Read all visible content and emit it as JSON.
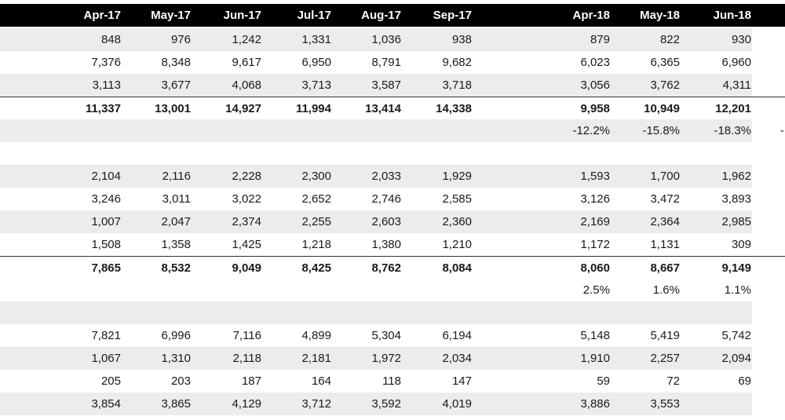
{
  "headers": [
    "Apr-17",
    "May-17",
    "Jun-17",
    "Jul-17",
    "Aug-17",
    "Sep-17",
    "Apr-18",
    "May-18",
    "Jun-18"
  ],
  "rows": [
    {
      "kind": "data",
      "shade": true,
      "cells": [
        "848",
        "976",
        "1,242",
        "1,331",
        "1,036",
        "938",
        "879",
        "822",
        "930"
      ]
    },
    {
      "kind": "data",
      "shade": false,
      "cells": [
        "7,376",
        "8,348",
        "9,617",
        "6,950",
        "8,791",
        "9,682",
        "6,023",
        "6,365",
        "6,960"
      ]
    },
    {
      "kind": "data",
      "shade": true,
      "cells": [
        "3,113",
        "3,677",
        "4,068",
        "3,713",
        "3,587",
        "3,718",
        "3,056",
        "3,762",
        "4,311"
      ]
    },
    {
      "kind": "total",
      "shade": false,
      "cells": [
        "11,337",
        "13,001",
        "14,927",
        "11,994",
        "13,414",
        "14,338",
        "9,958",
        "10,949",
        "12,201"
      ]
    },
    {
      "kind": "pct",
      "shade": true,
      "cells": [
        "",
        "",
        "",
        "",
        "",
        "",
        "-12.2%",
        "-15.8%",
        "-18.3%"
      ],
      "overflow": "-"
    },
    {
      "kind": "blank",
      "shade": false,
      "cells": [
        "",
        "",
        "",
        "",
        "",
        "",
        "",
        "",
        ""
      ]
    },
    {
      "kind": "data",
      "shade": true,
      "cells": [
        "2,104",
        "2,116",
        "2,228",
        "2,300",
        "2,033",
        "1,929",
        "1,593",
        "1,700",
        "1,962"
      ]
    },
    {
      "kind": "data",
      "shade": false,
      "cells": [
        "3,246",
        "3,011",
        "3,022",
        "2,652",
        "2,746",
        "2,585",
        "3,126",
        "3,472",
        "3,893"
      ]
    },
    {
      "kind": "data",
      "shade": true,
      "cells": [
        "1,007",
        "2,047",
        "2,374",
        "2,255",
        "2,603",
        "2,360",
        "2,169",
        "2,364",
        "2,985"
      ]
    },
    {
      "kind": "data",
      "shade": false,
      "cells": [
        "1,508",
        "1,358",
        "1,425",
        "1,218",
        "1,380",
        "1,210",
        "1,172",
        "1,131",
        "309"
      ]
    },
    {
      "kind": "total",
      "shade": false,
      "cells": [
        "7,865",
        "8,532",
        "9,049",
        "8,425",
        "8,762",
        "8,084",
        "8,060",
        "8,667",
        "9,149"
      ]
    },
    {
      "kind": "pct",
      "shade": false,
      "cells": [
        "",
        "",
        "",
        "",
        "",
        "",
        "2.5%",
        "1.6%",
        "1.1%"
      ]
    },
    {
      "kind": "blank",
      "shade": true,
      "cells": [
        "",
        "",
        "",
        "",
        "",
        "",
        "",
        "",
        ""
      ]
    },
    {
      "kind": "data",
      "shade": false,
      "cells": [
        "7,821",
        "6,996",
        "7,116",
        "4,899",
        "5,304",
        "6,194",
        "5,148",
        "5,419",
        "5,742"
      ]
    },
    {
      "kind": "data",
      "shade": true,
      "cells": [
        "1,067",
        "1,310",
        "2,118",
        "2,181",
        "1,972",
        "2,034",
        "1,910",
        "2,257",
        "2,094"
      ]
    },
    {
      "kind": "data",
      "shade": false,
      "cells": [
        "205",
        "203",
        "187",
        "164",
        "118",
        "147",
        "59",
        "72",
        "69"
      ]
    },
    {
      "kind": "data",
      "shade": true,
      "cells": [
        "3,854",
        "3,865",
        "4,129",
        "3,712",
        "3,592",
        "4,019",
        "3,886",
        "3,553",
        ""
      ]
    }
  ]
}
